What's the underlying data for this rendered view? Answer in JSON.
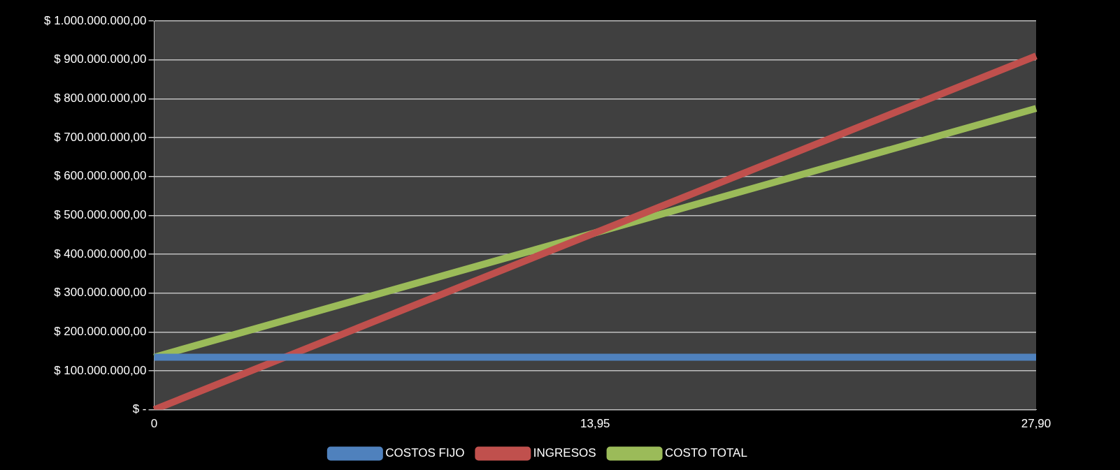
{
  "chart_data": {
    "type": "line",
    "categories": [
      "0",
      "13,95",
      "27,90"
    ],
    "series": [
      {
        "name": "COSTOS FIJO",
        "color": "#4f81bd",
        "values": [
          135000000,
          135000000,
          135000000
        ]
      },
      {
        "name": "INGRESOS",
        "color": "#c0504d",
        "values": [
          0,
          455000000,
          910000000
        ]
      },
      {
        "name": "COSTO TOTAL",
        "color": "#9bbb59",
        "values": [
          135000000,
          455000000,
          775000000
        ]
      }
    ],
    "ylim": [
      0,
      1000000000
    ],
    "yticks": [
      {
        "value": 0,
        "label": "$ -"
      },
      {
        "value": 100000000,
        "label": "$ 100.000.000,00"
      },
      {
        "value": 200000000,
        "label": "$ 200.000.000,00"
      },
      {
        "value": 300000000,
        "label": "$ 300.000.000,00"
      },
      {
        "value": 400000000,
        "label": "$ 400.000.000,00"
      },
      {
        "value": 500000000,
        "label": "$ 500.000.000,00"
      },
      {
        "value": 600000000,
        "label": "$ 600.000.000,00"
      },
      {
        "value": 700000000,
        "label": "$ 700.000.000,00"
      },
      {
        "value": 800000000,
        "label": "$ 800.000.000,00"
      },
      {
        "value": 900000000,
        "label": "$ 900.000.000,00"
      },
      {
        "value": 1000000000,
        "label": "$ 1.000.000.000,00"
      }
    ],
    "grid": "y",
    "legend": "bottom",
    "marker": "none",
    "line_style": "solid"
  }
}
